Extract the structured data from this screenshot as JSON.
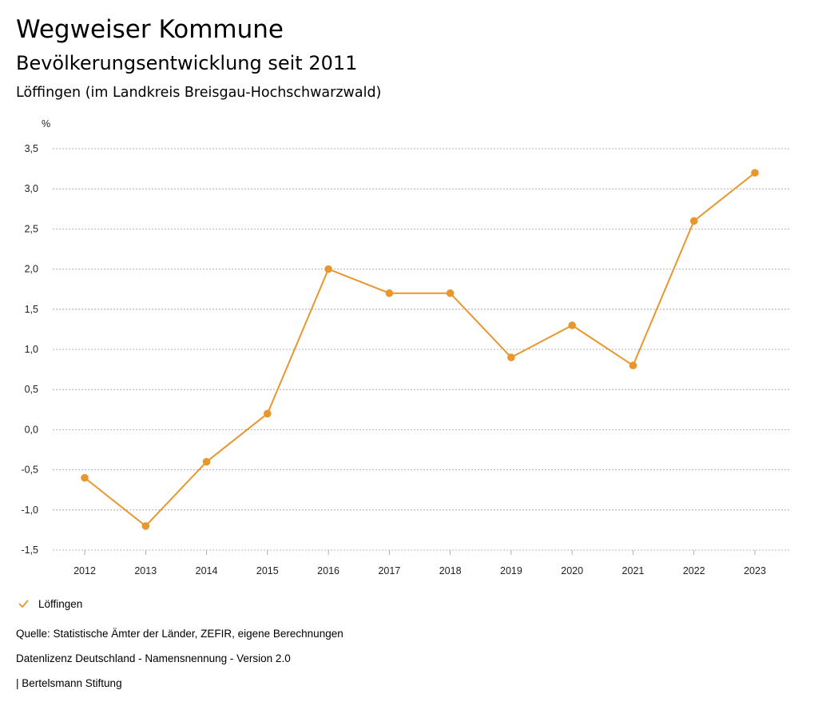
{
  "header": {
    "title": "Wegweiser Kommune",
    "subtitle": "Bevölkerungsentwicklung seit 2011",
    "region": "Löffingen (im Landkreis Breisgau-Hochschwarzwald)"
  },
  "colors": {
    "series": "#E8962E",
    "grid": "#9a9a9a"
  },
  "chart_data": {
    "type": "line",
    "title": "Bevölkerungsentwicklung seit 2011",
    "ylabel": "%",
    "xlabel": "",
    "ylim": [
      -1.5,
      3.5
    ],
    "yticks": [
      3.5,
      3.0,
      2.5,
      2.0,
      1.5,
      1.0,
      0.5,
      0.0,
      -0.5,
      -1.0,
      -1.5
    ],
    "ytick_labels": [
      "3,5",
      "3,0",
      "2,5",
      "2,0",
      "1,5",
      "1,0",
      "0,5",
      "0,0",
      "-0,5",
      "-1,0",
      "-1,5"
    ],
    "x": [
      "2012",
      "2013",
      "2014",
      "2015",
      "2016",
      "2017",
      "2018",
      "2019",
      "2020",
      "2021",
      "2022",
      "2023"
    ],
    "series": [
      {
        "name": "Löffingen",
        "values": [
          -0.6,
          -1.2,
          -0.4,
          0.2,
          2.0,
          1.7,
          1.7,
          0.9,
          1.3,
          0.8,
          2.6,
          3.2
        ]
      }
    ],
    "grid": true,
    "legend": "bottom-left"
  },
  "legend": {
    "label": "Löffingen"
  },
  "footer": {
    "source": "Quelle: Statistische Ämter der Länder, ZEFIR, eigene Berechnungen",
    "license": "Datenlizenz Deutschland - Namensnennung - Version 2.0",
    "publisher": "| Bertelsmann Stiftung"
  }
}
